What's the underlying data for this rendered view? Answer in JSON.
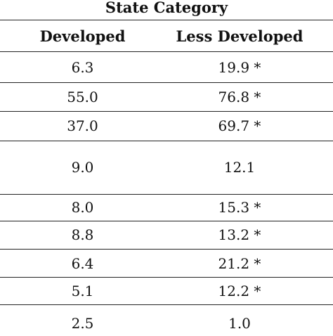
{
  "table": {
    "group_header": "State Category",
    "columns": [
      "Developed",
      "Less Developed"
    ],
    "rows": [
      [
        "6.3",
        "19.9 *"
      ],
      [
        "55.0",
        "76.8 *"
      ],
      [
        "37.0",
        "69.7 *"
      ],
      [
        "9.0",
        "12.1"
      ],
      [
        "8.0",
        "15.3 *"
      ],
      [
        "8.8",
        "13.2 *"
      ],
      [
        "6.4",
        "21.2 *"
      ],
      [
        "5.1",
        "12.2 *"
      ],
      [
        "2.5",
        "1.0"
      ]
    ]
  }
}
